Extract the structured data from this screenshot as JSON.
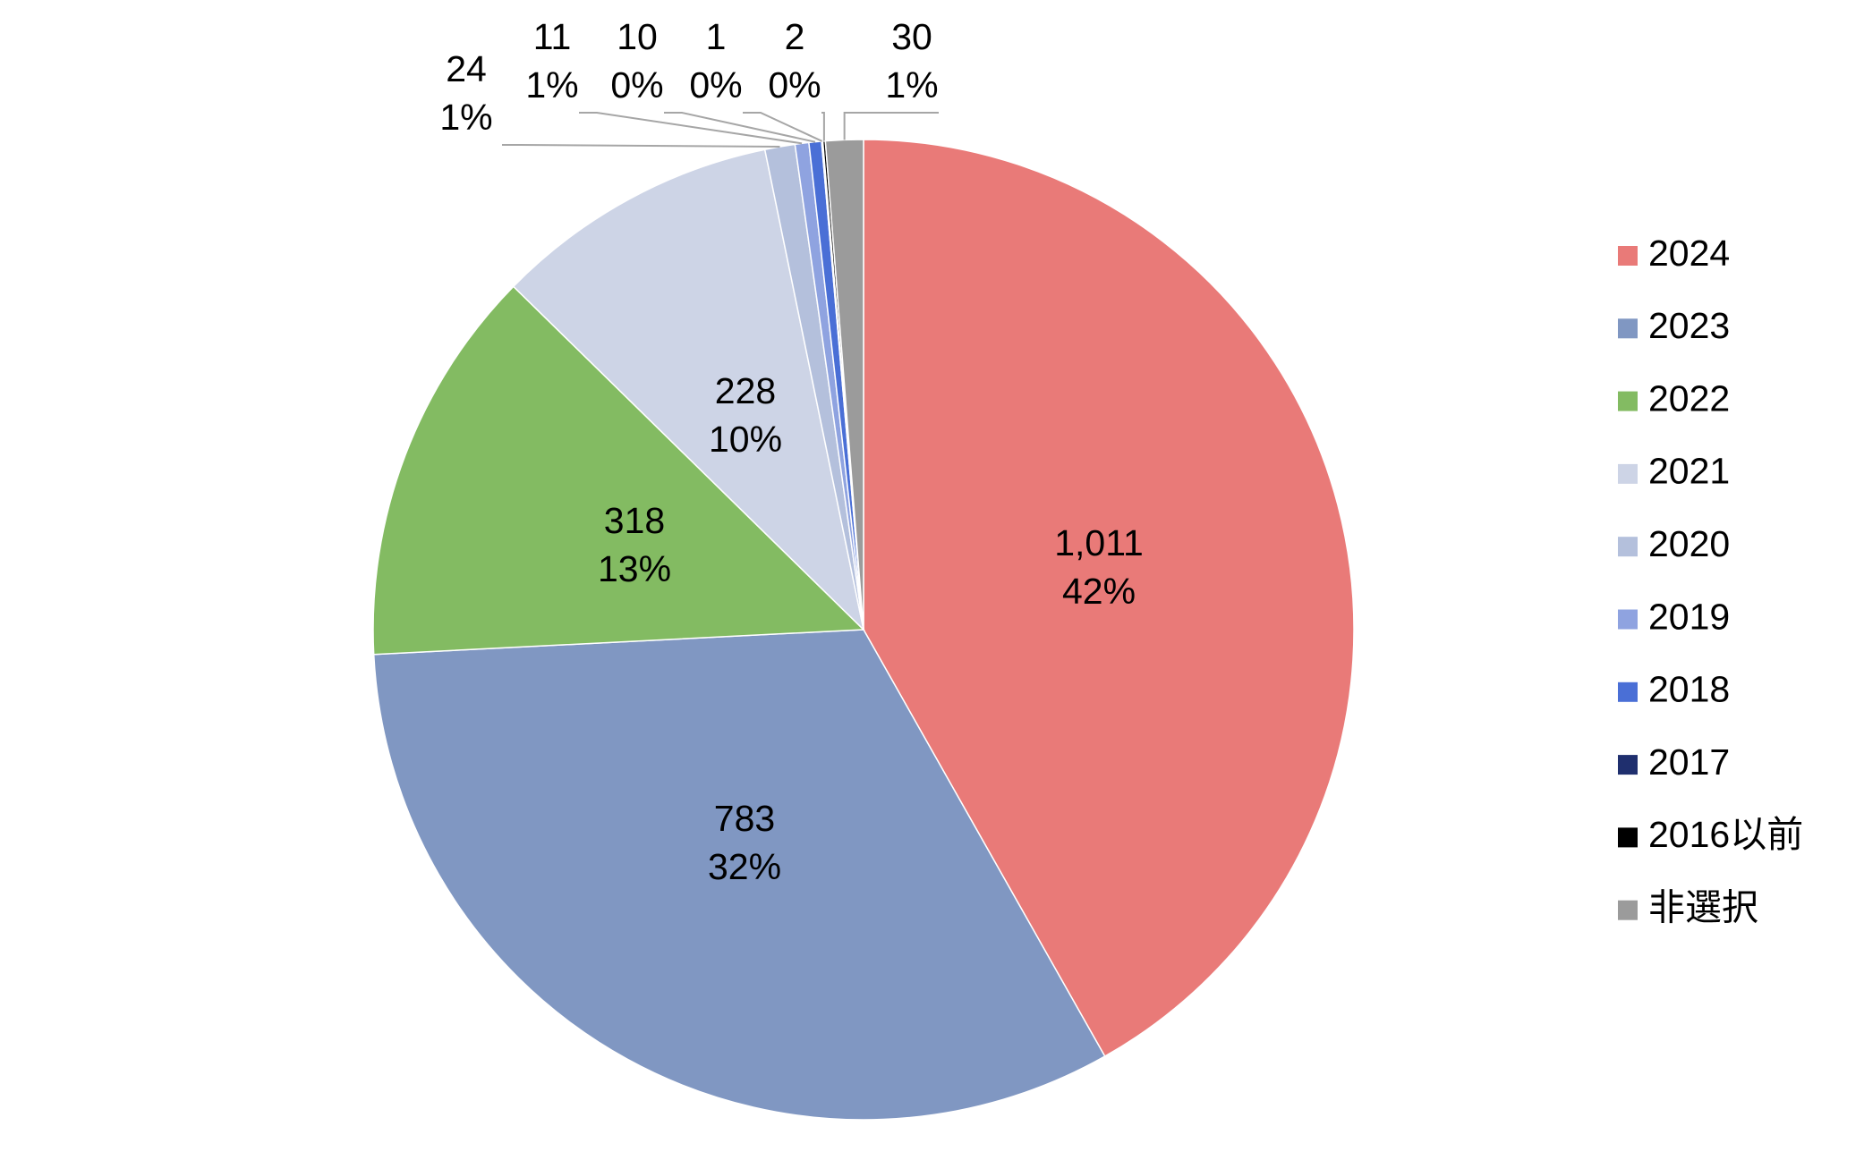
{
  "chart_data": {
    "type": "pie",
    "categories": [
      "2024",
      "2023",
      "2022",
      "2021",
      "2020",
      "2019",
      "2018",
      "2017",
      "2016以前",
      "非選択"
    ],
    "values": [
      1011,
      783,
      318,
      228,
      24,
      11,
      10,
      1,
      2,
      30
    ],
    "value_labels": [
      "1,011",
      "783",
      "318",
      "228",
      "24",
      "11",
      "10",
      "1",
      "2",
      "30"
    ],
    "percent_labels": [
      "42%",
      "32%",
      "13%",
      "10%",
      "1%",
      "1%",
      "0%",
      "0%",
      "0%",
      "1%"
    ],
    "colors": [
      "#e97a78",
      "#8097c2",
      "#83bb62",
      "#cdd4e6",
      "#b4c0dc",
      "#8fa3e0",
      "#4a6fd6",
      "#1f2f6e",
      "#000000",
      "#9b9b9b"
    ],
    "legend": "right"
  }
}
